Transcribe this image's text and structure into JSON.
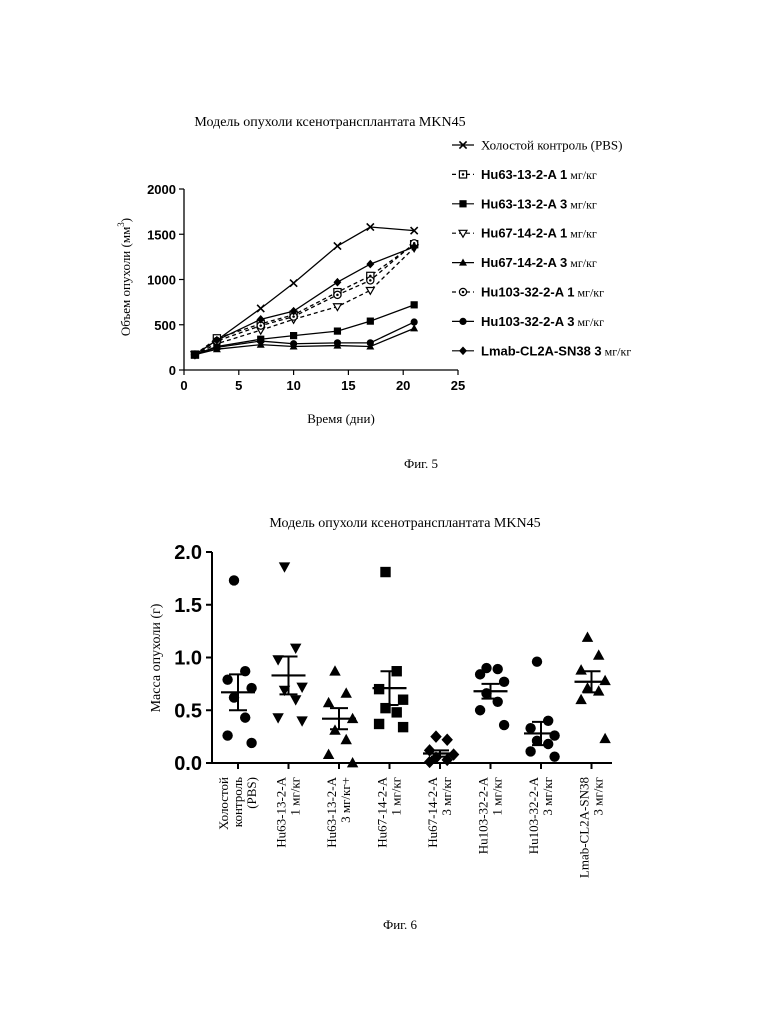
{
  "figures": {
    "fig5_caption": "Фиг. 5",
    "fig6_caption": "Фиг. 6"
  },
  "chart_data": [
    {
      "type": "line",
      "title": "Модель опухоли ксенотрансплантата MKN45",
      "xlabel": "Время (дни)",
      "ylabel": "Объем опухоли (мм",
      "ylabel_sup": "3",
      "ylabel_end": ")",
      "xlim": [
        0,
        25
      ],
      "ylim": [
        0,
        2000
      ],
      "xticks": [
        0,
        5,
        10,
        15,
        20,
        25
      ],
      "yticks": [
        0,
        500,
        1000,
        1500,
        2000
      ],
      "grid": false,
      "legend_position": "right",
      "series": [
        {
          "name": "Холостой контроль (PBS)",
          "marker": "x",
          "dash": "solid",
          "x": [
            1,
            3,
            7,
            10,
            14,
            17,
            21
          ],
          "y": [
            170,
            330,
            680,
            960,
            1370,
            1580,
            1540
          ]
        },
        {
          "name": "Hu63-13-2-A 1 мг/кг",
          "marker": "square-open-dot",
          "dash": "dashed",
          "x": [
            1,
            3,
            7,
            10,
            14,
            17,
            21
          ],
          "y": [
            170,
            350,
            510,
            610,
            860,
            1040,
            1390
          ]
        },
        {
          "name": "Hu63-13-2-A 3 мг/кг",
          "marker": "square",
          "dash": "solid",
          "x": [
            1,
            3,
            7,
            10,
            14,
            17,
            21
          ],
          "y": [
            170,
            260,
            340,
            380,
            430,
            540,
            720
          ]
        },
        {
          "name": "Hu67-14-2-A 1 мг/кг",
          "marker": "triangle-down-open",
          "dash": "dashed",
          "x": [
            1,
            3,
            7,
            10,
            14,
            17,
            21
          ],
          "y": [
            170,
            290,
            440,
            560,
            700,
            880,
            1350
          ]
        },
        {
          "name": "Hu67-14-2-A 3 мг/кг",
          "marker": "triangle",
          "dash": "solid",
          "x": [
            1,
            3,
            7,
            10,
            14,
            17,
            21
          ],
          "y": [
            170,
            230,
            280,
            260,
            270,
            260,
            460
          ]
        },
        {
          "name": "Hu103-32-2-A 1 мг/кг",
          "marker": "circle-open-dot",
          "dash": "dashed",
          "x": [
            1,
            3,
            7,
            10,
            14,
            17,
            21
          ],
          "y": [
            170,
            320,
            490,
            590,
            830,
            990,
            1400
          ]
        },
        {
          "name": "Hu103-32-2-A 3 мг/кг",
          "marker": "circle",
          "dash": "solid",
          "x": [
            1,
            3,
            7,
            10,
            14,
            17,
            21
          ],
          "y": [
            170,
            250,
            320,
            290,
            300,
            300,
            530
          ]
        },
        {
          "name": "Lmab-CL2A-SN38 3 мг/кг",
          "marker": "diamond",
          "dash": "solid",
          "x": [
            1,
            3,
            7,
            10,
            14,
            17,
            21
          ],
          "y": [
            170,
            330,
            560,
            650,
            970,
            1170,
            1360
          ]
        }
      ]
    },
    {
      "type": "scatter",
      "title": "Модель опухоли ксенотрансплантата MKN45",
      "ylabel": "Масса опухоли (г)",
      "ylim": [
        0,
        2.0
      ],
      "yticks": [
        "0.0",
        "0.5",
        "1.0",
        "1.5",
        "2.0"
      ],
      "grid": false,
      "groups": [
        {
          "label": [
            "Холостой",
            "контроль",
            "(PBS)"
          ],
          "marker": "circle",
          "points": [
            1.73,
            0.87,
            0.79,
            0.71,
            0.62,
            0.43,
            0.26,
            0.19
          ],
          "mean": 0.67,
          "sem": 0.17
        },
        {
          "label": [
            "Hu63-13-2-A",
            "1 мг/кг"
          ],
          "marker": "triangle-down",
          "points": [
            1.86,
            1.09,
            0.98,
            0.72,
            0.69,
            0.6,
            0.43,
            0.4
          ],
          "mean": 0.83,
          "sem": 0.18
        },
        {
          "label": [
            "Hu63-13-2-A",
            "3 мг/кг+"
          ],
          "marker": "triangle",
          "points": [
            0.87,
            0.66,
            0.57,
            0.42,
            0.31,
            0.22,
            0.08,
            0.0
          ],
          "mean": 0.42,
          "sem": 0.1
        },
        {
          "label": [
            "Hu67-14-2-A",
            "1 мг/кг"
          ],
          "marker": "square",
          "points": [
            1.81,
            0.87,
            0.7,
            0.6,
            0.52,
            0.48,
            0.37,
            0.34
          ],
          "mean": 0.71,
          "sem": 0.16
        },
        {
          "label": [
            "Hu67-14-2-A",
            "3 мг/кг"
          ],
          "marker": "diamond",
          "points": [
            0.25,
            0.22,
            0.12,
            0.08,
            0.05,
            0.03,
            0.01
          ],
          "mean": 0.09,
          "sem": 0.03
        },
        {
          "label": [
            "Hu103-32-2-A",
            "1 мг/кг"
          ],
          "marker": "circle",
          "points": [
            0.9,
            0.89,
            0.84,
            0.77,
            0.66,
            0.58,
            0.5,
            0.36
          ],
          "mean": 0.68,
          "sem": 0.07
        },
        {
          "label": [
            "Hu103-32-2-A",
            "3 мг/кг"
          ],
          "marker": "circle",
          "points": [
            0.96,
            0.4,
            0.33,
            0.26,
            0.21,
            0.18,
            0.11,
            0.06
          ],
          "mean": 0.28,
          "sem": 0.11
        },
        {
          "label": [
            "Lmab-CL2A-SN38",
            "3 мг/кг"
          ],
          "marker": "triangle",
          "points": [
            1.19,
            1.02,
            0.88,
            0.78,
            0.71,
            0.68,
            0.6,
            0.23
          ],
          "mean": 0.77,
          "sem": 0.1
        }
      ]
    }
  ]
}
